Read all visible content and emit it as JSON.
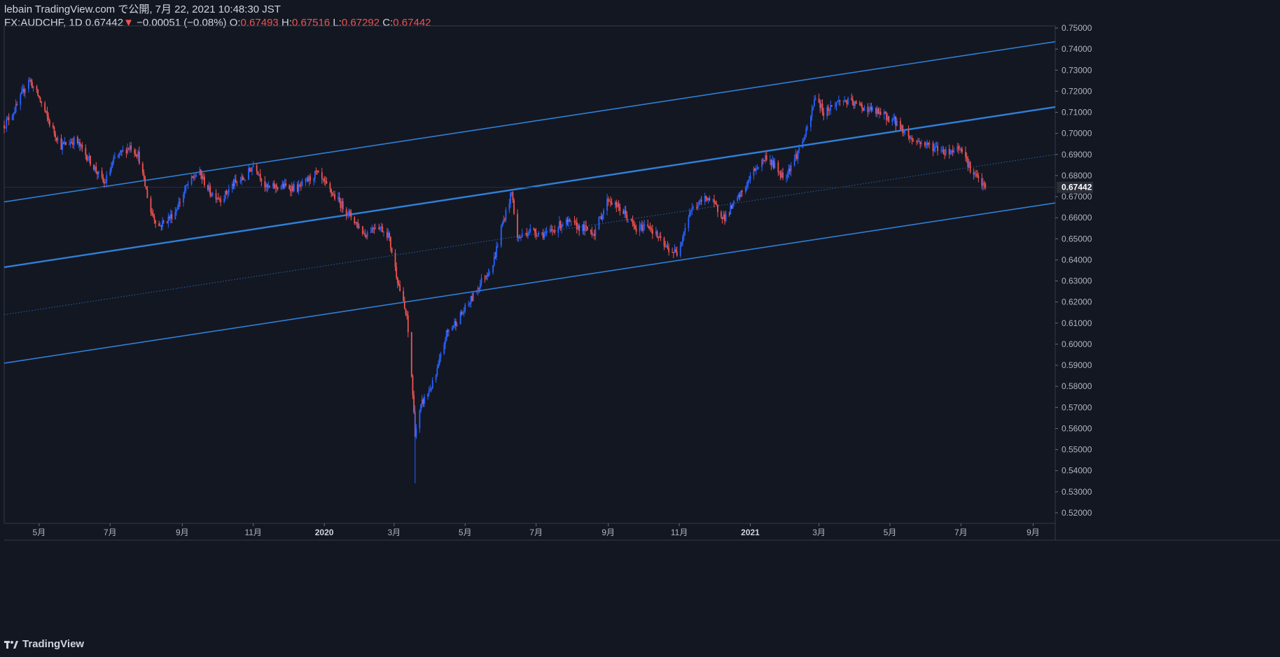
{
  "header": {
    "line1": "lebain TradingView.com で公開, 7月 22, 2021 10:48:30 JST",
    "symbol": "FX:AUDCHF, 1D 0.67442",
    "arrow": "▼",
    "change": " −0.00051 (−0.08%) ",
    "o_label": "O:",
    "o_value": "0.67493",
    "h_label": " H:",
    "h_value": "0.67516",
    "l_label": " L:",
    "l_value": "0.67292",
    "c_label": " C:",
    "c_value": "0.67442"
  },
  "footer": {
    "brand": "TradingView",
    "logo": "tradingview-logo-icon"
  },
  "colors": {
    "up": "#2962ff",
    "down": "#ef5350",
    "channel": "#2f7fd6",
    "background": "#131722"
  },
  "chart_data": {
    "type": "candlestick",
    "symbol": "FX:AUDCHF",
    "interval": "1D",
    "last_price": 0.67442,
    "ylim": [
      0.515,
      0.751
    ],
    "y_ticks": [
      "0.75000",
      "0.74000",
      "0.73000",
      "0.72000",
      "0.71000",
      "0.70000",
      "0.69000",
      "0.68000",
      "0.67000",
      "0.66000",
      "0.65000",
      "0.64000",
      "0.63000",
      "0.62000",
      "0.61000",
      "0.60000",
      "0.59000",
      "0.58000",
      "0.57000",
      "0.56000",
      "0.55000",
      "0.54000",
      "0.53000",
      "0.52000"
    ],
    "x_ticks": [
      {
        "label": "5月",
        "date": "2019-05-01",
        "bold": false
      },
      {
        "label": "7月",
        "date": "2019-07-01",
        "bold": false
      },
      {
        "label": "9月",
        "date": "2019-09-01",
        "bold": false
      },
      {
        "label": "11月",
        "date": "2019-11-01",
        "bold": false
      },
      {
        "label": "2020",
        "date": "2020-01-01",
        "bold": true
      },
      {
        "label": "3月",
        "date": "2020-03-01",
        "bold": false
      },
      {
        "label": "5月",
        "date": "2020-05-01",
        "bold": false
      },
      {
        "label": "7月",
        "date": "2020-07-01",
        "bold": false
      },
      {
        "label": "9月",
        "date": "2020-09-01",
        "bold": false
      },
      {
        "label": "11月",
        "date": "2020-11-01",
        "bold": false
      },
      {
        "label": "2021",
        "date": "2021-01-01",
        "bold": true
      },
      {
        "label": "3月",
        "date": "2021-03-01",
        "bold": false
      },
      {
        "label": "5月",
        "date": "2021-05-01",
        "bold": false
      },
      {
        "label": "7月",
        "date": "2021-07-01",
        "bold": false
      },
      {
        "label": "9月",
        "date": "2021-09-01",
        "bold": false
      }
    ],
    "price_path": [
      [
        "2019-04-01",
        0.704
      ],
      [
        "2019-04-12",
        0.713
      ],
      [
        "2019-04-22",
        0.726
      ],
      [
        "2019-04-30",
        0.718
      ],
      [
        "2019-05-10",
        0.705
      ],
      [
        "2019-05-20",
        0.694
      ],
      [
        "2019-06-01",
        0.697
      ],
      [
        "2019-06-15",
        0.686
      ],
      [
        "2019-06-26",
        0.676
      ],
      [
        "2019-07-05",
        0.688
      ],
      [
        "2019-07-18",
        0.694
      ],
      [
        "2019-07-25",
        0.69
      ],
      [
        "2019-08-05",
        0.663
      ],
      [
        "2019-08-12",
        0.656
      ],
      [
        "2019-08-25",
        0.662
      ],
      [
        "2019-09-05",
        0.675
      ],
      [
        "2019-09-15",
        0.682
      ],
      [
        "2019-09-25",
        0.672
      ],
      [
        "2019-10-05",
        0.669
      ],
      [
        "2019-10-15",
        0.676
      ],
      [
        "2019-10-25",
        0.679
      ],
      [
        "2019-11-02",
        0.686
      ],
      [
        "2019-11-12",
        0.674
      ],
      [
        "2019-11-25",
        0.675
      ],
      [
        "2019-12-10",
        0.674
      ],
      [
        "2019-12-25",
        0.681
      ],
      [
        "2020-01-10",
        0.67
      ],
      [
        "2020-01-25",
        0.66
      ],
      [
        "2020-02-05",
        0.652
      ],
      [
        "2020-02-15",
        0.657
      ],
      [
        "2020-02-25",
        0.652
      ],
      [
        "2020-03-05",
        0.628
      ],
      [
        "2020-03-12",
        0.612
      ],
      [
        "2020-03-16",
        0.585
      ],
      [
        "2020-03-19",
        0.558
      ],
      [
        "2020-03-25",
        0.572
      ],
      [
        "2020-04-05",
        0.583
      ],
      [
        "2020-04-15",
        0.605
      ],
      [
        "2020-04-25",
        0.612
      ],
      [
        "2020-05-05",
        0.62
      ],
      [
        "2020-05-15",
        0.63
      ],
      [
        "2020-05-25",
        0.638
      ],
      [
        "2020-06-01",
        0.655
      ],
      [
        "2020-06-10",
        0.672
      ],
      [
        "2020-06-15",
        0.65
      ],
      [
        "2020-06-25",
        0.654
      ],
      [
        "2020-07-10",
        0.652
      ],
      [
        "2020-07-25",
        0.658
      ],
      [
        "2020-08-05",
        0.656
      ],
      [
        "2020-08-20",
        0.653
      ],
      [
        "2020-09-01",
        0.669
      ],
      [
        "2020-09-15",
        0.662
      ],
      [
        "2020-09-25",
        0.654
      ],
      [
        "2020-10-05",
        0.657
      ],
      [
        "2020-10-20",
        0.646
      ],
      [
        "2020-10-30",
        0.643
      ],
      [
        "2020-11-10",
        0.663
      ],
      [
        "2020-11-25",
        0.67
      ],
      [
        "2020-12-10",
        0.66
      ],
      [
        "2020-12-25",
        0.672
      ],
      [
        "2021-01-05",
        0.683
      ],
      [
        "2021-01-15",
        0.689
      ],
      [
        "2021-01-30",
        0.679
      ],
      [
        "2021-02-10",
        0.69
      ],
      [
        "2021-02-20",
        0.703
      ],
      [
        "2021-02-26",
        0.718
      ],
      [
        "2021-03-05",
        0.71
      ],
      [
        "2021-03-20",
        0.716
      ],
      [
        "2021-04-05",
        0.713
      ],
      [
        "2021-04-20",
        0.71
      ],
      [
        "2021-05-05",
        0.706
      ],
      [
        "2021-05-20",
        0.697
      ],
      [
        "2021-06-05",
        0.694
      ],
      [
        "2021-06-20",
        0.691
      ],
      [
        "2021-07-01",
        0.694
      ],
      [
        "2021-07-10",
        0.682
      ],
      [
        "2021-07-22",
        0.674
      ]
    ],
    "channel_lines": [
      {
        "style": "solid",
        "from": [
          "2019-04-01",
          0.6675
        ],
        "to": [
          "2021-09-20",
          0.7435
        ]
      },
      {
        "style": "solid-bold",
        "from": [
          "2019-04-01",
          0.6365
        ],
        "to": [
          "2021-09-20",
          0.7125
        ]
      },
      {
        "style": "dotted",
        "from": [
          "2019-04-01",
          0.614
        ],
        "to": [
          "2021-09-20",
          0.69
        ]
      },
      {
        "style": "solid",
        "from": [
          "2019-04-01",
          0.591
        ],
        "to": [
          "2021-09-20",
          0.667
        ]
      }
    ]
  }
}
